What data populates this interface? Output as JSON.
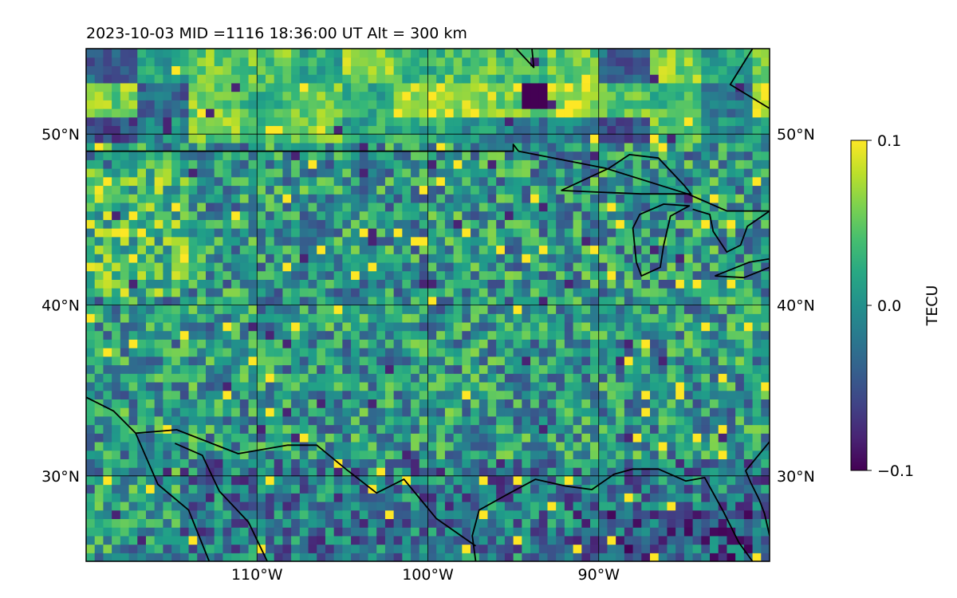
{
  "chart_data": {
    "type": "heatmap",
    "title": "2023-10-03  MID =1116    18:36:00  UT  Alt = 300 km",
    "map": {
      "lon_range": [
        -120,
        -80
      ],
      "lat_range": [
        25,
        55
      ],
      "lon_ticks": [
        -110,
        -100,
        -90
      ],
      "lon_tick_labels": [
        "110°W",
        "100°W",
        "90°W"
      ],
      "lat_ticks": [
        30,
        40,
        50
      ],
      "lat_tick_labels": [
        "30°N",
        "40°N",
        "50°N"
      ],
      "grid": true
    },
    "colorbar": {
      "label": "TECU",
      "colormap": "viridis",
      "range": [
        -0.1,
        0.1
      ],
      "ticks": [
        0.1,
        0.0,
        -0.1
      ],
      "tick_labels": [
        "0.1",
        "0.0",
        "−0.1"
      ]
    },
    "field": {
      "units": "TECU",
      "resolution_deg": 0.5,
      "overall_mean": 0.0,
      "overall_range": [
        -0.1,
        0.1
      ],
      "regional_features": [
        {
          "region": "northern Canada (north of 49°N)",
          "description": "smooth smeared patches, mostly 0.0 to 0.08 with a few yellow spots near 0.1"
        },
        {
          "region": "northwest (around 40-47°N, 115-120°W)",
          "description": "elevated, frequent yellow-green pixels, about 0.05 to 0.1"
        },
        {
          "region": "central plains",
          "description": "noisy speckle around 0.0"
        },
        {
          "region": "Gulf of Mexico and far southeast",
          "description": "depleted, dark purple patches down to about -0.1"
        },
        {
          "region": "near 52°N, 94°W",
          "description": "dark spot about -0.1"
        }
      ]
    },
    "coastlines": [
      {
        "name": "us-canada-border-west",
        "points": [
          [
            -120,
            49
          ],
          [
            -95,
            49
          ],
          [
            -95,
            49.4
          ],
          [
            -94.7,
            49
          ]
        ]
      },
      {
        "name": "us-canada-border-east",
        "points": [
          [
            -94.7,
            49
          ],
          [
            -89.6,
            48
          ],
          [
            -84.8,
            46.5
          ],
          [
            -82.5,
            45.5
          ],
          [
            -80,
            45.5
          ]
        ]
      },
      {
        "name": "lake-superior",
        "points": [
          [
            -92.2,
            46.7
          ],
          [
            -90,
            46.6
          ],
          [
            -87.5,
            46.5
          ],
          [
            -84.6,
            46.5
          ],
          [
            -85,
            47
          ],
          [
            -86.5,
            48.6
          ],
          [
            -88.2,
            48.8
          ],
          [
            -89.4,
            48
          ],
          [
            -92.2,
            46.7
          ]
        ]
      },
      {
        "name": "lake-michigan",
        "points": [
          [
            -87.8,
            42.5
          ],
          [
            -87.5,
            41.7
          ],
          [
            -86.4,
            42.2
          ],
          [
            -86.2,
            43.5
          ],
          [
            -85.8,
            45.2
          ],
          [
            -84.7,
            45.8
          ],
          [
            -86.2,
            45.9
          ],
          [
            -87.6,
            45.3
          ],
          [
            -88,
            44.5
          ],
          [
            -87.8,
            42.5
          ]
        ]
      },
      {
        "name": "lake-huron",
        "points": [
          [
            -84.5,
            45.6
          ],
          [
            -83.5,
            45.3
          ],
          [
            -83.3,
            44.3
          ],
          [
            -82.5,
            43.1
          ],
          [
            -81.7,
            43.5
          ],
          [
            -81.3,
            44.6
          ],
          [
            -80,
            45.5
          ]
        ]
      },
      {
        "name": "lake-erie",
        "points": [
          [
            -83.2,
            41.7
          ],
          [
            -81.5,
            41.6
          ],
          [
            -80,
            42.2
          ],
          [
            -80,
            42.7
          ],
          [
            -81.2,
            42.5
          ],
          [
            -83.2,
            41.7
          ]
        ]
      },
      {
        "name": "hudson-bay-coast",
        "points": [
          [
            -94.2,
            58
          ],
          [
            -93.8,
            53.9
          ],
          [
            -95.3,
            55.5
          ],
          [
            -95.6,
            56.8
          ]
        ]
      },
      {
        "name": "james-bay-coast",
        "points": [
          [
            -81,
            55
          ],
          [
            -82.3,
            52.9
          ],
          [
            -80,
            51.5
          ]
        ]
      },
      {
        "name": "gulf-coast",
        "points": [
          [
            -97.2,
            25
          ],
          [
            -97.4,
            26.5
          ],
          [
            -97,
            28
          ],
          [
            -95.2,
            29
          ],
          [
            -93.7,
            29.8
          ],
          [
            -91.9,
            29.4
          ],
          [
            -90.4,
            29.2
          ],
          [
            -89.1,
            30.1
          ],
          [
            -88,
            30.4
          ],
          [
            -86.5,
            30.4
          ],
          [
            -84.9,
            29.7
          ],
          [
            -83.8,
            29.9
          ],
          [
            -82.7,
            27.9
          ],
          [
            -81.8,
            26.1
          ],
          [
            -81,
            25
          ]
        ]
      },
      {
        "name": "florida-atlantic-coast",
        "points": [
          [
            -80,
            26.5
          ],
          [
            -80.3,
            27.8
          ],
          [
            -80.6,
            28.6
          ],
          [
            -81.1,
            29.6
          ],
          [
            -81.4,
            30.3
          ],
          [
            -80,
            32
          ]
        ]
      },
      {
        "name": "us-mexico-border",
        "points": [
          [
            -120,
            34.6
          ],
          [
            -118.4,
            33.8
          ],
          [
            -117.1,
            32.5
          ],
          [
            -114.7,
            32.7
          ],
          [
            -111.1,
            31.3
          ],
          [
            -108.2,
            31.8
          ],
          [
            -106.5,
            31.8
          ],
          [
            -104.8,
            30.4
          ],
          [
            -103,
            29
          ],
          [
            -101.4,
            29.8
          ],
          [
            -99.5,
            27.5
          ],
          [
            -97.2,
            25.9
          ]
        ]
      },
      {
        "name": "baja-california",
        "points": [
          [
            -117.1,
            32.5
          ],
          [
            -115.8,
            29.5
          ],
          [
            -114,
            28
          ],
          [
            -112.8,
            25
          ]
        ]
      },
      {
        "name": "gulf-of-california-coast",
        "points": [
          [
            -114.8,
            31.9
          ],
          [
            -113.2,
            31.2
          ],
          [
            -112.2,
            29.1
          ],
          [
            -110.5,
            27.3
          ],
          [
            -109.4,
            25
          ]
        ]
      }
    ]
  }
}
